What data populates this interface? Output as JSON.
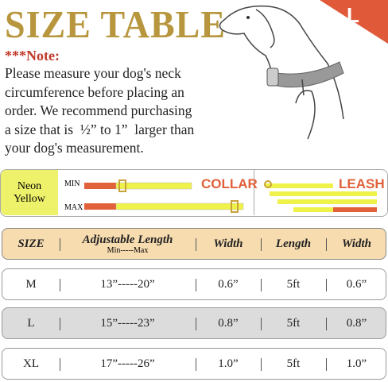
{
  "header": {
    "title": "SIZE TABLE",
    "badge": "L"
  },
  "note": {
    "label": "***Note:",
    "lines": [
      "Please measure your dog's neck",
      "circumference before placing an",
      "order. We recommend purchasing",
      "a size that is  ½” to 1”  larger than",
      "your dog's measurement."
    ]
  },
  "color_row": {
    "color": [
      "Neon",
      "Yellow"
    ],
    "min": "MIN",
    "max": "MAX",
    "collar": "COLLAR",
    "leash": "LEASH"
  },
  "table": {
    "header": [
      "SIZE",
      "Adjustable Length",
      "Width",
      "Length",
      "Width"
    ],
    "subheader": "Min-----Max",
    "rows": [
      [
        "M",
        "13”-----20”",
        "0.6”",
        "5ft",
        "0.6”"
      ],
      [
        "L",
        "15”-----23”",
        "0.8”",
        "5ft",
        "0.8”"
      ],
      [
        "XL",
        "17”-----26”",
        "1.0”",
        "5ft",
        "1.0”"
      ]
    ]
  }
}
